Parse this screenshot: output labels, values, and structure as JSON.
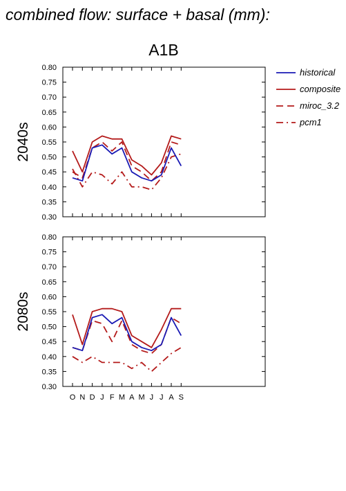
{
  "title": "combined flow: surface + basal (mm):",
  "scenario": "A1B",
  "legend": [
    {
      "name": "historical",
      "color": "#1a1ab4",
      "dash": "solid"
    },
    {
      "name": "composite",
      "color": "#b41a1a",
      "dash": "solid"
    },
    {
      "name": "miroc_3.2",
      "color": "#b41a1a",
      "dash": "dashed"
    },
    {
      "name": "pcm1",
      "color": "#b41a1a",
      "dash": "dashdot"
    }
  ],
  "chart_data": [
    {
      "type": "line",
      "panel_label": "2040s",
      "categories": [
        "O",
        "N",
        "D",
        "J",
        "F",
        "M",
        "A",
        "M",
        "J",
        "J",
        "A",
        "S"
      ],
      "ylim": [
        0.3,
        0.8
      ],
      "yticks": [
        "0.30",
        "0.35",
        "0.40",
        "0.45",
        "0.50",
        "0.55",
        "0.60",
        "0.65",
        "0.70",
        "0.75",
        "0.80"
      ],
      "series": [
        {
          "name": "historical",
          "values": [
            0.43,
            0.42,
            0.53,
            0.54,
            0.51,
            0.53,
            0.45,
            0.43,
            0.42,
            0.44,
            0.53,
            0.47
          ]
        },
        {
          "name": "composite",
          "values": [
            0.52,
            0.45,
            0.55,
            0.57,
            0.56,
            0.56,
            0.49,
            0.47,
            0.44,
            0.48,
            0.57,
            0.56
          ]
        },
        {
          "name": "miroc_3.2",
          "values": [
            0.45,
            0.43,
            0.53,
            0.55,
            0.52,
            0.55,
            0.47,
            0.45,
            0.42,
            0.45,
            0.55,
            0.54
          ]
        },
        {
          "name": "pcm1",
          "values": [
            0.46,
            0.4,
            0.45,
            0.44,
            0.41,
            0.45,
            0.4,
            0.4,
            0.39,
            0.43,
            0.5,
            0.51
          ]
        }
      ]
    },
    {
      "type": "line",
      "panel_label": "2080s",
      "categories": [
        "O",
        "N",
        "D",
        "J",
        "F",
        "M",
        "A",
        "M",
        "J",
        "J",
        "A",
        "S"
      ],
      "ylim": [
        0.3,
        0.8
      ],
      "yticks": [
        "0.30",
        "0.35",
        "0.40",
        "0.45",
        "0.50",
        "0.55",
        "0.60",
        "0.65",
        "0.70",
        "0.75",
        "0.80"
      ],
      "series": [
        {
          "name": "historical",
          "values": [
            0.43,
            0.42,
            0.53,
            0.54,
            0.51,
            0.53,
            0.45,
            0.43,
            0.42,
            0.44,
            0.53,
            0.47
          ]
        },
        {
          "name": "composite",
          "values": [
            0.54,
            0.44,
            0.55,
            0.56,
            0.56,
            0.55,
            0.47,
            0.45,
            0.43,
            0.49,
            0.56,
            0.56
          ]
        },
        {
          "name": "miroc_3.2",
          "values": [
            0.43,
            0.42,
            0.52,
            0.51,
            0.45,
            0.52,
            0.44,
            0.42,
            0.41,
            0.44,
            0.53,
            0.51
          ]
        },
        {
          "name": "pcm1",
          "values": [
            0.4,
            0.38,
            0.4,
            0.38,
            0.38,
            0.38,
            0.36,
            0.38,
            0.35,
            0.38,
            0.41,
            0.43
          ]
        }
      ]
    }
  ]
}
